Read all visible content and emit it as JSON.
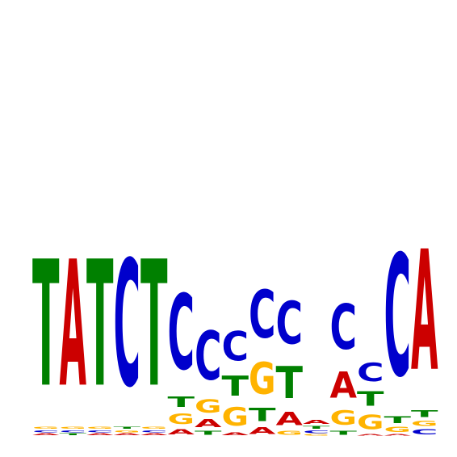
{
  "chart_data": {
    "type": "sequence-logo",
    "alphabet": [
      "A",
      "C",
      "G",
      "T"
    ],
    "colors": {
      "A": "#cc0000",
      "C": "#0000cc",
      "G": "#ffb300",
      "T": "#008000"
    },
    "ylim": [
      0,
      2
    ],
    "positions": [
      {
        "A": 0.014,
        "C": 0.016,
        "G": 0.016,
        "T": 0.954
      },
      {
        "A": 0.954,
        "C": 0.016,
        "G": 0.016,
        "T": 0.014
      },
      {
        "A": 0.014,
        "C": 0.016,
        "G": 0.016,
        "T": 0.954
      },
      {
        "A": 0.014,
        "C": 0.954,
        "G": 0.016,
        "T": 0.016
      },
      {
        "A": 0.014,
        "C": 0.016,
        "G": 0.016,
        "T": 0.954
      },
      {
        "A": 0.04,
        "C": 0.57,
        "G": 0.08,
        "T": 0.08
      },
      {
        "A": 0.06,
        "C": 0.37,
        "G": 0.1,
        "T": 0.03
      },
      {
        "A": 0.02,
        "C": 0.22,
        "G": 0.14,
        "T": 0.15
      },
      {
        "A": 0.05,
        "C": 0.36,
        "G": 0.24,
        "T": 0.1
      },
      {
        "A": 0.1,
        "C": 0.32,
        "G": 0.03,
        "T": 0.24
      },
      {
        "A": 0.03,
        "C": 0.02,
        "G": 0.01,
        "T": 0.02
      },
      {
        "A": 0.2,
        "C": 0.34,
        "G": 0.11,
        "T": 0.03
      },
      {
        "A": 0.01,
        "C": 0.14,
        "G": 0.11,
        "T": 0.11
      },
      {
        "A": 0.01,
        "C": 0.92,
        "G": 0.04,
        "T": 0.05
      },
      {
        "A": 0.91,
        "C": 0.04,
        "G": 0.04,
        "T": 0.05
      }
    ]
  }
}
